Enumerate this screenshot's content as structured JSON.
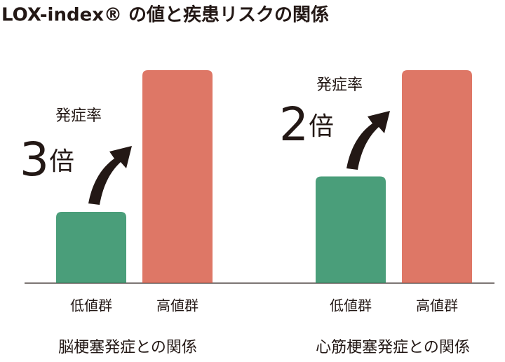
{
  "title": "LOX-index® の値と疾患リスクの関係",
  "chart_data": [
    {
      "type": "bar",
      "title": "脳梗塞発症との関係",
      "categories": [
        "低値群",
        "高値群"
      ],
      "values": [
        1,
        3
      ],
      "colors": [
        "#4a9e7a",
        "#de7766"
      ],
      "ylim": [
        0,
        3
      ],
      "annotation": "発症率",
      "multiplier": "3",
      "multiplier_unit": "倍"
    },
    {
      "type": "bar",
      "title": "心筋梗塞発症との関係",
      "categories": [
        "低値群",
        "高値群"
      ],
      "values": [
        1,
        2
      ],
      "colors": [
        "#4a9e7a",
        "#de7766"
      ],
      "ylim": [
        0,
        2
      ],
      "annotation": "発症率",
      "multiplier": "2",
      "multiplier_unit": "倍"
    }
  ]
}
